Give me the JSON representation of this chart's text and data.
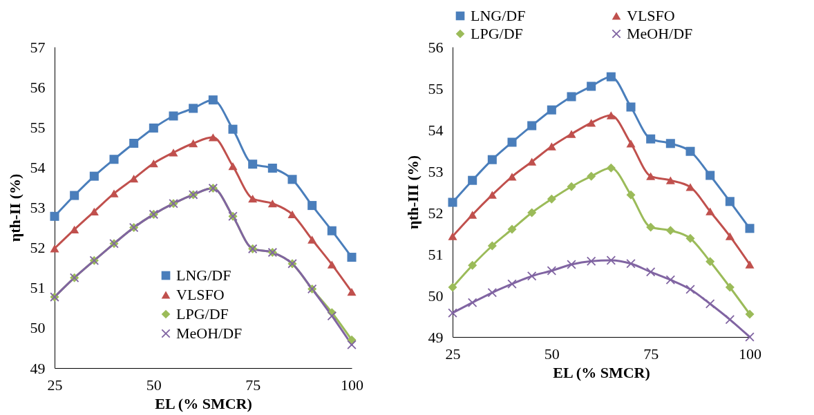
{
  "chart_data": [
    {
      "type": "line",
      "xlabel": "EL (% SMCR)",
      "ylabel": "ηth-II (%)",
      "x": [
        25,
        30,
        35,
        40,
        45,
        50,
        55,
        60,
        65,
        70,
        75,
        80,
        85,
        90,
        95,
        100
      ],
      "xlim": [
        25,
        100
      ],
      "xticks": [
        25,
        50,
        75,
        100
      ],
      "ylim": [
        49,
        57
      ],
      "yticks": [
        49,
        50,
        51,
        52,
        53,
        54,
        55,
        56,
        57
      ],
      "legend": "bottom",
      "line_style": "solid",
      "series": [
        {
          "name": "LNG/DF",
          "color": "#4a7ebb",
          "marker": "square",
          "values": [
            52.78,
            53.3,
            53.78,
            54.2,
            54.6,
            54.98,
            55.28,
            55.47,
            55.68,
            54.95,
            54.08,
            53.98,
            53.7,
            53.05,
            52.42,
            51.76
          ]
        },
        {
          "name": "VLSFO",
          "color": "#c0504d",
          "marker": "triangle",
          "values": [
            51.98,
            52.45,
            52.9,
            53.35,
            53.72,
            54.1,
            54.37,
            54.6,
            54.75,
            54.03,
            53.22,
            53.1,
            52.83,
            52.2,
            51.58,
            50.9
          ]
        },
        {
          "name": "LPG/DF",
          "color": "#9bbb59",
          "marker": "diamond",
          "values": [
            50.77,
            51.25,
            51.68,
            52.1,
            52.5,
            52.83,
            53.1,
            53.32,
            53.48,
            52.78,
            51.97,
            51.88,
            51.6,
            50.97,
            50.38,
            49.7
          ]
        },
        {
          "name": "MeOH/DF",
          "color": "#8064a2",
          "marker": "cross",
          "values": [
            50.77,
            51.25,
            51.68,
            52.1,
            52.5,
            52.83,
            53.1,
            53.32,
            53.48,
            52.78,
            51.97,
            51.88,
            51.6,
            50.97,
            50.3,
            49.58
          ]
        }
      ]
    },
    {
      "type": "line",
      "xlabel": "EL (% SMCR)",
      "ylabel": "ηth-III (%)",
      "x": [
        25,
        30,
        35,
        40,
        45,
        50,
        55,
        60,
        65,
        70,
        75,
        80,
        85,
        90,
        95,
        100
      ],
      "xlim": [
        25,
        100
      ],
      "xticks": [
        25,
        50,
        75,
        100
      ],
      "ylim": [
        49,
        56
      ],
      "yticks": [
        49,
        50,
        51,
        52,
        53,
        54,
        55,
        56
      ],
      "legend": "top",
      "line_style": "solid",
      "series": [
        {
          "name": "LNG/DF",
          "color": "#4a7ebb",
          "marker": "square",
          "values": [
            52.25,
            52.78,
            53.28,
            53.7,
            54.1,
            54.48,
            54.8,
            55.05,
            55.28,
            54.55,
            53.78,
            53.67,
            53.48,
            52.9,
            52.27,
            51.62
          ]
        },
        {
          "name": "VLSFO",
          "color": "#c0504d",
          "marker": "triangle",
          "values": [
            51.43,
            51.95,
            52.43,
            52.87,
            53.23,
            53.6,
            53.9,
            54.17,
            54.35,
            53.67,
            52.88,
            52.78,
            52.62,
            52.03,
            51.43,
            50.75
          ]
        },
        {
          "name": "LPG/DF",
          "color": "#9bbb59",
          "marker": "diamond",
          "values": [
            50.2,
            50.73,
            51.2,
            51.6,
            52.0,
            52.33,
            52.63,
            52.88,
            53.08,
            52.43,
            51.65,
            51.57,
            51.38,
            50.82,
            50.2,
            49.55
          ]
        },
        {
          "name": "MeOH/DF",
          "color": "#8064a2",
          "marker": "cross",
          "values": [
            49.58,
            49.83,
            50.07,
            50.28,
            50.47,
            50.6,
            50.75,
            50.83,
            50.85,
            50.77,
            50.57,
            50.38,
            50.15,
            49.8,
            49.42,
            49.0
          ]
        }
      ]
    }
  ]
}
